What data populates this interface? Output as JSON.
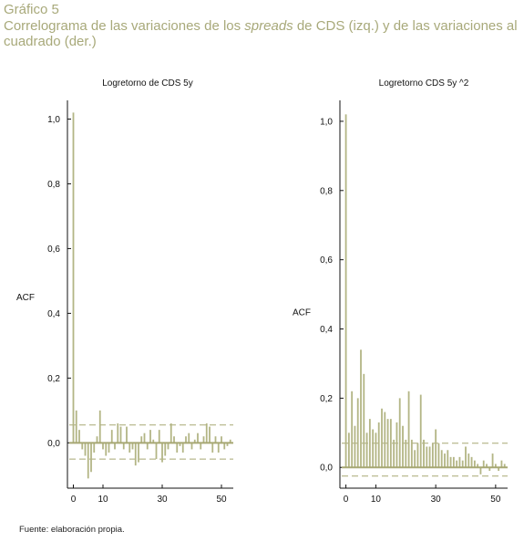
{
  "figure": {
    "label": "Gráfico 5",
    "title_parts": [
      {
        "text": "Correlograma de las variaciones de los ",
        "italic": false
      },
      {
        "text": "spreads",
        "italic": true
      },
      {
        "text": " de CDS (izq.) y de las variaciones al cuadrado (der.)",
        "italic": false
      }
    ],
    "source": "Fuente: elaboración propia.",
    "colors": {
      "title": "#a8a97a",
      "bars": "#b3b585",
      "axis": "#111111",
      "zero_line": "#a7a874"
    }
  },
  "chart_data": [
    {
      "type": "bar",
      "title": "Logretorno de CDS 5y",
      "ylabel": "ACF",
      "xlabel": "",
      "xlim": [
        -2,
        54
      ],
      "ylim": [
        -0.14,
        1.1
      ],
      "x_ticks": [
        0,
        10,
        30,
        50
      ],
      "x_tick_labels": [
        "0",
        "10",
        "30",
        "50"
      ],
      "y_ticks": [
        0.0,
        0.2,
        0.4,
        0.6,
        0.8,
        1.0
      ],
      "y_tick_labels": [
        "0,0",
        "0,2",
        "0,4",
        "0,6",
        "0,8",
        "1,0"
      ],
      "confidence_bands": [
        0.055,
        -0.05
      ],
      "lags": [
        0,
        1,
        2,
        3,
        4,
        5,
        6,
        7,
        8,
        9,
        10,
        11,
        12,
        13,
        14,
        15,
        16,
        17,
        18,
        19,
        20,
        21,
        22,
        23,
        24,
        25,
        26,
        27,
        28,
        29,
        30,
        31,
        32,
        33,
        34,
        35,
        36,
        37,
        38,
        39,
        40,
        41,
        42,
        43,
        44,
        45,
        46,
        47,
        48,
        49,
        50,
        51,
        52,
        53
      ],
      "values": [
        1.02,
        0.1,
        0.04,
        -0.02,
        -0.04,
        -0.11,
        -0.09,
        -0.03,
        0.02,
        0.1,
        -0.02,
        -0.04,
        -0.03,
        0.04,
        -0.02,
        0.06,
        0.05,
        -0.02,
        0.05,
        -0.03,
        -0.02,
        -0.07,
        -0.06,
        0.02,
        0.03,
        -0.02,
        0.04,
        0.01,
        -0.05,
        0.04,
        -0.06,
        -0.04,
        -0.02,
        0.06,
        0.02,
        -0.03,
        -0.01,
        -0.03,
        0.02,
        0.03,
        -0.02,
        0.01,
        0.03,
        -0.02,
        0.02,
        0.06,
        0.05,
        -0.03,
        0.02,
        -0.03,
        0.02,
        -0.02,
        -0.01,
        0.01
      ]
    },
    {
      "type": "bar",
      "title": "Logretorno CDS 5y  ^2",
      "ylabel": "ACF",
      "xlabel": "",
      "xlim": [
        -2,
        54
      ],
      "ylim": [
        -0.06,
        1.1
      ],
      "x_ticks": [
        0,
        10,
        30,
        50
      ],
      "x_tick_labels": [
        "0",
        "10",
        "30",
        "50"
      ],
      "y_ticks": [
        0.0,
        0.2,
        0.4,
        0.6,
        0.8,
        1.0
      ],
      "y_tick_labels": [
        "0,0",
        "0,2",
        "0,4",
        "0,6",
        "0,8",
        "1,0"
      ],
      "confidence_bands": [
        0.07,
        -0.025
      ],
      "lags": [
        0,
        1,
        2,
        3,
        4,
        5,
        6,
        7,
        8,
        9,
        10,
        11,
        12,
        13,
        14,
        15,
        16,
        17,
        18,
        19,
        20,
        21,
        22,
        23,
        24,
        25,
        26,
        27,
        28,
        29,
        30,
        31,
        32,
        33,
        34,
        35,
        36,
        37,
        38,
        39,
        40,
        41,
        42,
        43,
        44,
        45,
        46,
        47,
        48,
        49,
        50,
        51,
        52,
        53
      ],
      "values": [
        1.02,
        0.1,
        0.22,
        0.12,
        0.2,
        0.34,
        0.27,
        0.1,
        0.14,
        0.11,
        0.1,
        0.13,
        0.17,
        0.16,
        0.14,
        0.14,
        0.08,
        0.13,
        0.2,
        0.12,
        0.08,
        0.22,
        0.08,
        0.05,
        0.07,
        0.21,
        0.08,
        0.06,
        0.06,
        0.07,
        0.11,
        0.07,
        0.05,
        0.04,
        0.05,
        0.03,
        0.03,
        0.02,
        0.03,
        0.02,
        0.06,
        0.04,
        0.03,
        0.02,
        0.01,
        -0.02,
        0.02,
        0.01,
        -0.01,
        0.04,
        0.01,
        -0.01,
        0.02,
        0.01
      ]
    }
  ]
}
